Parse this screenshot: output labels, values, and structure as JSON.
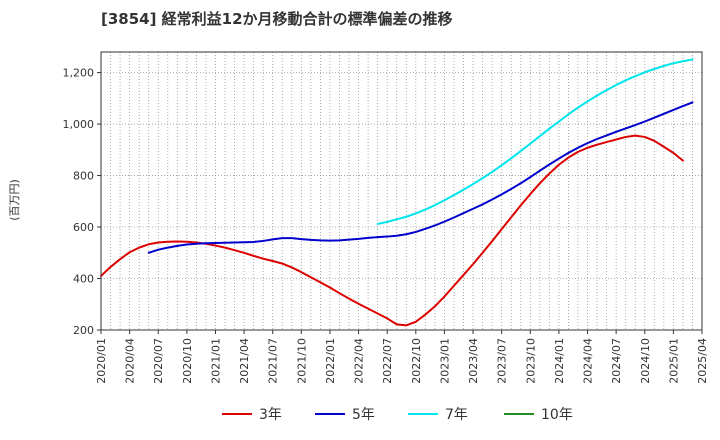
{
  "chart_data": {
    "type": "line",
    "title": "[3854]  経常利益12か月移動合計の標準偏差の推移",
    "ylabel": "(百万円)",
    "xlabel": "",
    "ylim": [
      200,
      1280
    ],
    "yticks": [
      200,
      400,
      600,
      800,
      1000,
      1200
    ],
    "ytick_labels": [
      "200",
      "400",
      "600",
      "800",
      "1,000",
      "1,200"
    ],
    "xlim": [
      "2020/01",
      "2025/04"
    ],
    "xtick_labels": [
      "2020/01",
      "2020/04",
      "2020/07",
      "2020/10",
      "2021/01",
      "2021/04",
      "2021/07",
      "2021/10",
      "2022/01",
      "2022/04",
      "2022/07",
      "2022/10",
      "2023/01",
      "2023/04",
      "2023/07",
      "2023/10",
      "2024/01",
      "2024/04",
      "2024/07",
      "2024/10",
      "2025/01",
      "2025/04"
    ],
    "grid": true,
    "legend_position": "bottom",
    "series": [
      {
        "name": "3年",
        "color": "#dd0000",
        "points": [
          [
            "2020/01",
            410
          ],
          [
            "2020/02",
            445
          ],
          [
            "2020/03",
            475
          ],
          [
            "2020/04",
            502
          ],
          [
            "2020/05",
            520
          ],
          [
            "2020/06",
            533
          ],
          [
            "2020/07",
            540
          ],
          [
            "2020/08",
            543
          ],
          [
            "2020/09",
            544
          ],
          [
            "2020/10",
            543
          ],
          [
            "2020/11",
            540
          ],
          [
            "2020/12",
            535
          ],
          [
            "2021/01",
            528
          ],
          [
            "2021/02",
            520
          ],
          [
            "2021/03",
            510
          ],
          [
            "2021/04",
            500
          ],
          [
            "2021/05",
            488
          ],
          [
            "2021/06",
            477
          ],
          [
            "2021/07",
            468
          ],
          [
            "2021/08",
            458
          ],
          [
            "2021/09",
            443
          ],
          [
            "2021/10",
            425
          ],
          [
            "2021/11",
            405
          ],
          [
            "2021/12",
            385
          ],
          [
            "2022/01",
            365
          ],
          [
            "2022/02",
            343
          ],
          [
            "2022/03",
            322
          ],
          [
            "2022/04",
            302
          ],
          [
            "2022/05",
            283
          ],
          [
            "2022/06",
            264
          ],
          [
            "2022/07",
            245
          ],
          [
            "2022/08",
            222
          ],
          [
            "2022/09",
            218
          ],
          [
            "2022/10",
            232
          ],
          [
            "2022/11",
            260
          ],
          [
            "2022/12",
            292
          ],
          [
            "2023/01",
            330
          ],
          [
            "2023/02",
            372
          ],
          [
            "2023/03",
            414
          ],
          [
            "2023/04",
            456
          ],
          [
            "2023/05",
            500
          ],
          [
            "2023/06",
            545
          ],
          [
            "2023/07",
            592
          ],
          [
            "2023/08",
            638
          ],
          [
            "2023/09",
            684
          ],
          [
            "2023/10",
            728
          ],
          [
            "2023/11",
            770
          ],
          [
            "2023/12",
            808
          ],
          [
            "2024/01",
            842
          ],
          [
            "2024/02",
            870
          ],
          [
            "2024/03",
            892
          ],
          [
            "2024/04",
            908
          ],
          [
            "2024/05",
            920
          ],
          [
            "2024/06",
            930
          ],
          [
            "2024/07",
            940
          ],
          [
            "2024/08",
            950
          ],
          [
            "2024/09",
            955
          ],
          [
            "2024/10",
            950
          ],
          [
            "2024/11",
            935
          ],
          [
            "2024/12",
            912
          ],
          [
            "2025/01",
            888
          ],
          [
            "2025/02",
            858
          ]
        ]
      },
      {
        "name": "5年",
        "color": "#0000cc",
        "points": [
          [
            "2020/06",
            500
          ],
          [
            "2020/07",
            512
          ],
          [
            "2020/08",
            520
          ],
          [
            "2020/09",
            527
          ],
          [
            "2020/10",
            532
          ],
          [
            "2020/11",
            535
          ],
          [
            "2020/12",
            537
          ],
          [
            "2021/01",
            538
          ],
          [
            "2021/02",
            539
          ],
          [
            "2021/03",
            540
          ],
          [
            "2021/04",
            541
          ],
          [
            "2021/05",
            542
          ],
          [
            "2021/06",
            546
          ],
          [
            "2021/07",
            552
          ],
          [
            "2021/08",
            557
          ],
          [
            "2021/09",
            557
          ],
          [
            "2021/10",
            553
          ],
          [
            "2021/11",
            550
          ],
          [
            "2021/12",
            548
          ],
          [
            "2022/01",
            547
          ],
          [
            "2022/02",
            548
          ],
          [
            "2022/03",
            551
          ],
          [
            "2022/04",
            554
          ],
          [
            "2022/05",
            558
          ],
          [
            "2022/06",
            561
          ],
          [
            "2022/07",
            563
          ],
          [
            "2022/08",
            566
          ],
          [
            "2022/09",
            572
          ],
          [
            "2022/10",
            581
          ],
          [
            "2022/11",
            593
          ],
          [
            "2022/12",
            606
          ],
          [
            "2023/01",
            621
          ],
          [
            "2023/02",
            637
          ],
          [
            "2023/03",
            654
          ],
          [
            "2023/04",
            671
          ],
          [
            "2023/05",
            688
          ],
          [
            "2023/06",
            707
          ],
          [
            "2023/07",
            727
          ],
          [
            "2023/08",
            748
          ],
          [
            "2023/09",
            770
          ],
          [
            "2023/10",
            794
          ],
          [
            "2023/11",
            819
          ],
          [
            "2023/12",
            843
          ],
          [
            "2024/01",
            866
          ],
          [
            "2024/02",
            888
          ],
          [
            "2024/03",
            908
          ],
          [
            "2024/04",
            926
          ],
          [
            "2024/05",
            942
          ],
          [
            "2024/06",
            956
          ],
          [
            "2024/07",
            970
          ],
          [
            "2024/08",
            983
          ],
          [
            "2024/09",
            996
          ],
          [
            "2024/10",
            1010
          ],
          [
            "2024/11",
            1025
          ],
          [
            "2024/12",
            1040
          ],
          [
            "2025/01",
            1055
          ],
          [
            "2025/02",
            1070
          ],
          [
            "2025/03",
            1084
          ]
        ]
      },
      {
        "name": "7年",
        "color": "#00e5ee",
        "points": [
          [
            "2022/06",
            612
          ],
          [
            "2022/07",
            620
          ],
          [
            "2022/08",
            630
          ],
          [
            "2022/09",
            640
          ],
          [
            "2022/10",
            653
          ],
          [
            "2022/11",
            668
          ],
          [
            "2022/12",
            685
          ],
          [
            "2023/01",
            704
          ],
          [
            "2023/02",
            724
          ],
          [
            "2023/03",
            745
          ],
          [
            "2023/04",
            767
          ],
          [
            "2023/05",
            790
          ],
          [
            "2023/06",
            814
          ],
          [
            "2023/07",
            840
          ],
          [
            "2023/08",
            867
          ],
          [
            "2023/09",
            895
          ],
          [
            "2023/10",
            924
          ],
          [
            "2023/11",
            953
          ],
          [
            "2023/12",
            982
          ],
          [
            "2024/01",
            1010
          ],
          [
            "2024/02",
            1038
          ],
          [
            "2024/03",
            1064
          ],
          [
            "2024/04",
            1088
          ],
          [
            "2024/05",
            1111
          ],
          [
            "2024/06",
            1132
          ],
          [
            "2024/07",
            1152
          ],
          [
            "2024/08",
            1170
          ],
          [
            "2024/09",
            1186
          ],
          [
            "2024/10",
            1201
          ],
          [
            "2024/11",
            1214
          ],
          [
            "2024/12",
            1226
          ],
          [
            "2025/01",
            1236
          ],
          [
            "2025/02",
            1244
          ],
          [
            "2025/03",
            1251
          ]
        ]
      },
      {
        "name": "10年",
        "color": "#228b22",
        "points": []
      }
    ]
  }
}
